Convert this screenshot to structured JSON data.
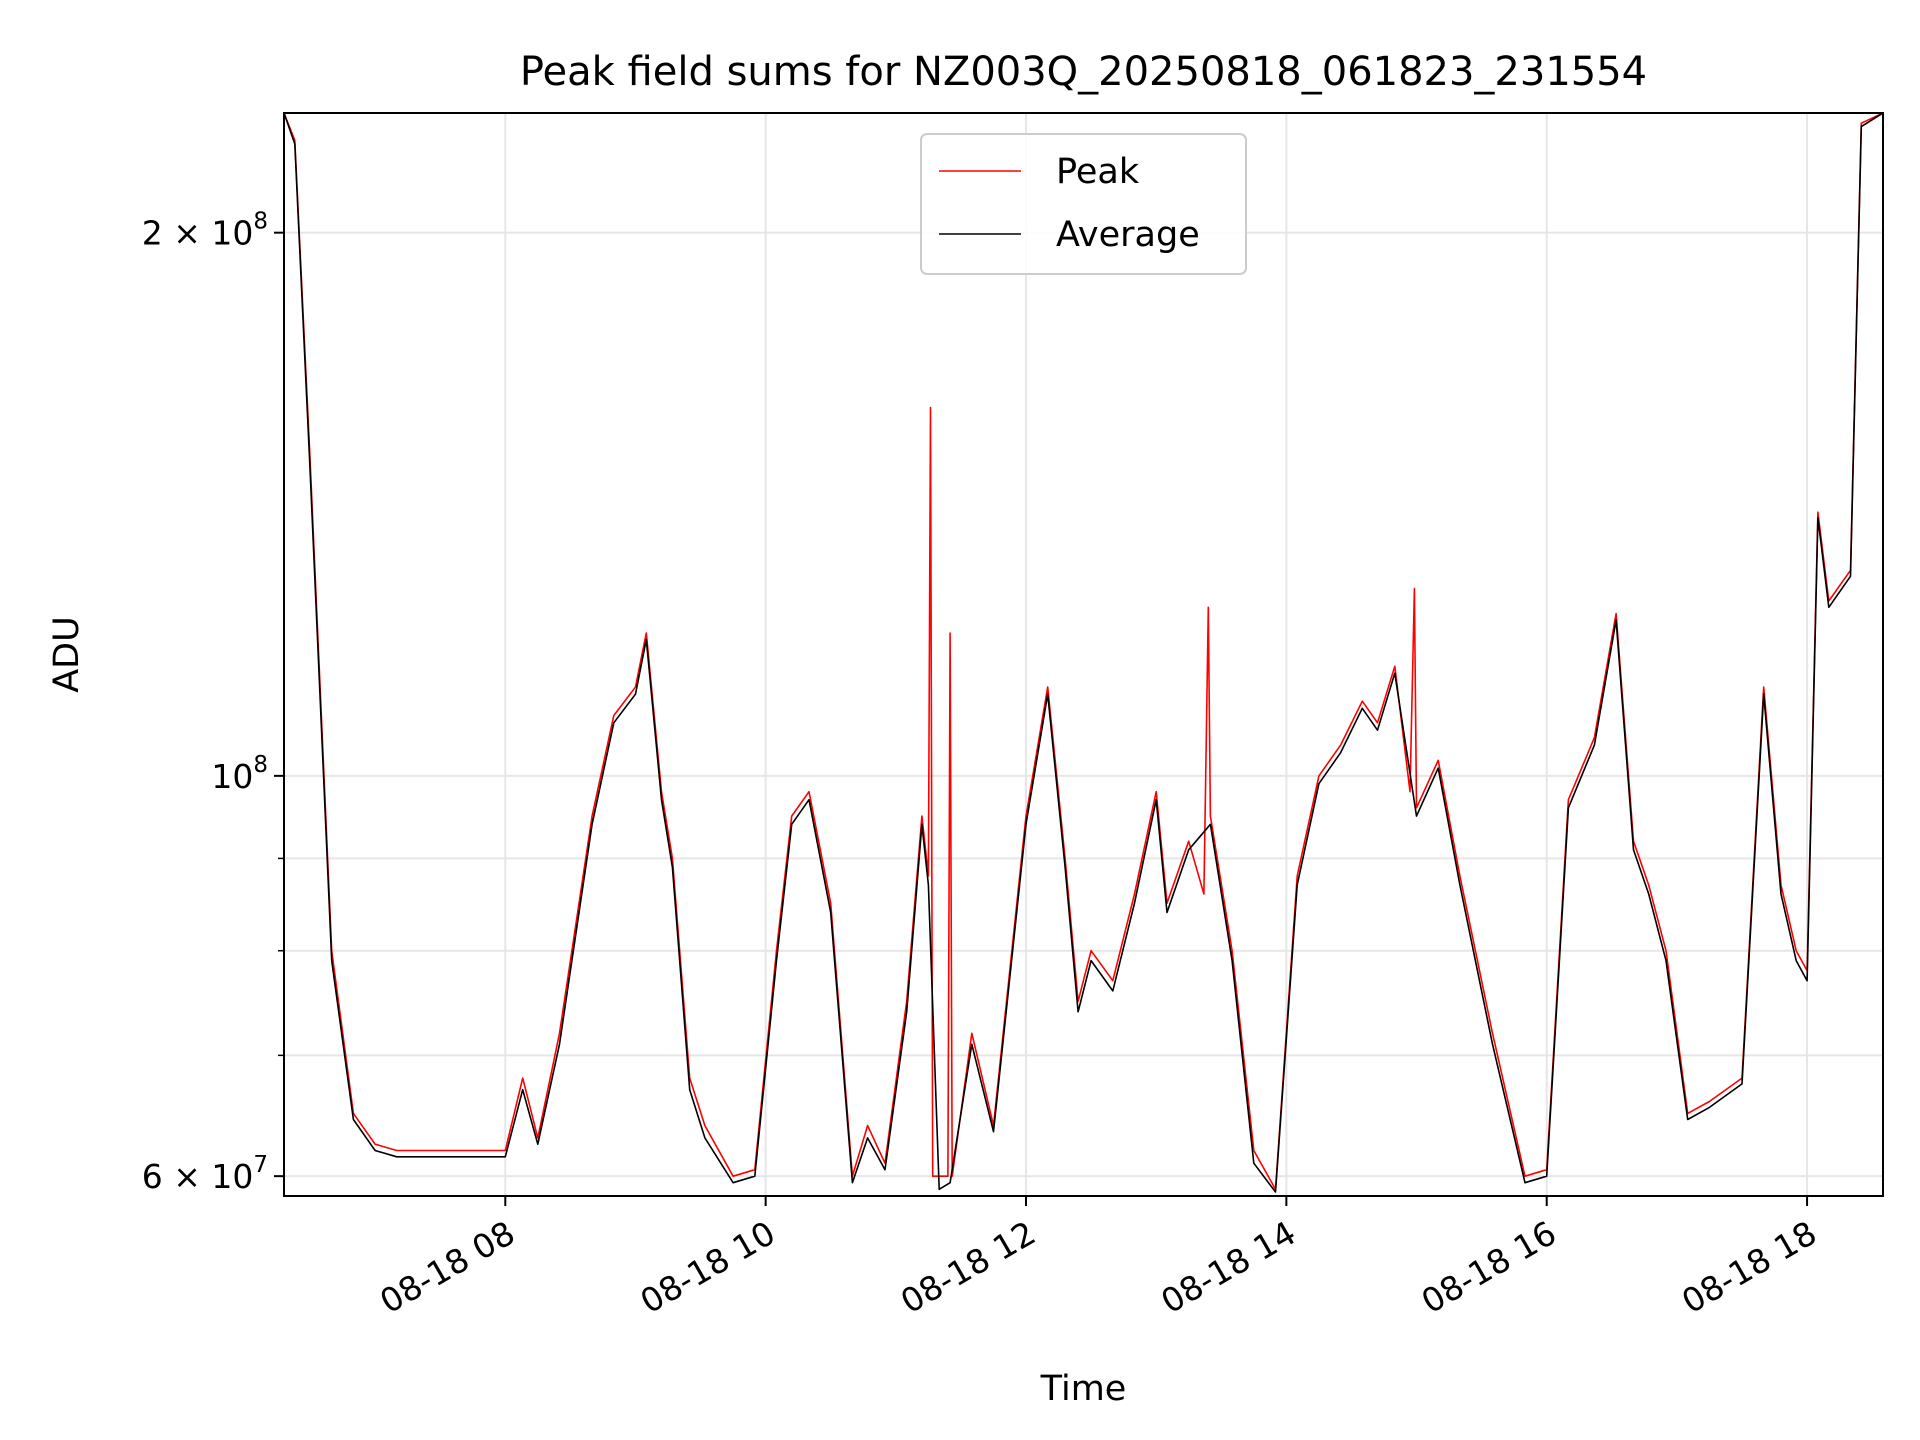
{
  "chart_data": {
    "type": "line",
    "title": "Peak field sums for NZ003Q_20250818_061823_231554",
    "xlabel": "Time",
    "ylabel": "ADU",
    "y_scale": "log",
    "ylim": [
      58500000,
      233000000
    ],
    "xlim": [
      "2025-08-18T06:18",
      "2025-08-18T18:35"
    ],
    "x_ticks": [
      {
        "value": "2025-08-18T08:00",
        "label": "08-18 08"
      },
      {
        "value": "2025-08-18T10:00",
        "label": "08-18 10"
      },
      {
        "value": "2025-08-18T12:00",
        "label": "08-18 12"
      },
      {
        "value": "2025-08-18T14:00",
        "label": "08-18 14"
      },
      {
        "value": "2025-08-18T16:00",
        "label": "08-18 16"
      },
      {
        "value": "2025-08-18T18:00",
        "label": "08-18 18"
      }
    ],
    "y_ticks": [
      {
        "value": 60000000,
        "base": "6 × 10",
        "exp": "7"
      },
      {
        "value": 100000000,
        "base": "10",
        "exp": "8"
      },
      {
        "value": 200000000,
        "base": "2 × 10",
        "exp": "8"
      }
    ],
    "y_minor_ticks": [
      70000000,
      80000000,
      90000000
    ],
    "grid": true,
    "legend": "upper-center",
    "series": [
      {
        "name": "Peak",
        "color": "#ff0000",
        "x": [
          "2025-08-18T06:18",
          "2025-08-18T06:23",
          "2025-08-18T06:30",
          "2025-08-18T06:40",
          "2025-08-18T06:50",
          "2025-08-18T07:00",
          "2025-08-18T07:10",
          "2025-08-18T07:20",
          "2025-08-18T07:40",
          "2025-08-18T08:00",
          "2025-08-18T08:08",
          "2025-08-18T08:15",
          "2025-08-18T08:25",
          "2025-08-18T08:40",
          "2025-08-18T08:50",
          "2025-08-18T09:00",
          "2025-08-18T09:05",
          "2025-08-18T09:12",
          "2025-08-18T09:17",
          "2025-08-18T09:25",
          "2025-08-18T09:32",
          "2025-08-18T09:45",
          "2025-08-18T09:55",
          "2025-08-18T10:05",
          "2025-08-18T10:12",
          "2025-08-18T10:20",
          "2025-08-18T10:30",
          "2025-08-18T10:40",
          "2025-08-18T10:47",
          "2025-08-18T10:55",
          "2025-08-18T11:05",
          "2025-08-18T11:12",
          "2025-08-18T11:15",
          "2025-08-18T11:16",
          "2025-08-18T11:17",
          "2025-08-18T11:24",
          "2025-08-18T11:25",
          "2025-08-18T11:26",
          "2025-08-18T11:35",
          "2025-08-18T11:45",
          "2025-08-18T12:00",
          "2025-08-18T12:10",
          "2025-08-18T12:18",
          "2025-08-18T12:24",
          "2025-08-18T12:30",
          "2025-08-18T12:40",
          "2025-08-18T12:50",
          "2025-08-18T13:00",
          "2025-08-18T13:05",
          "2025-08-18T13:15",
          "2025-08-18T13:22",
          "2025-08-18T13:24",
          "2025-08-18T13:25",
          "2025-08-18T13:35",
          "2025-08-18T13:45",
          "2025-08-18T13:55",
          "2025-08-18T14:05",
          "2025-08-18T14:15",
          "2025-08-18T14:25",
          "2025-08-18T14:35",
          "2025-08-18T14:42",
          "2025-08-18T14:50",
          "2025-08-18T14:57",
          "2025-08-18T14:59",
          "2025-08-18T15:00",
          "2025-08-18T15:10",
          "2025-08-18T15:20",
          "2025-08-18T15:35",
          "2025-08-18T15:50",
          "2025-08-18T16:00",
          "2025-08-18T16:10",
          "2025-08-18T16:22",
          "2025-08-18T16:32",
          "2025-08-18T16:40",
          "2025-08-18T16:47",
          "2025-08-18T16:55",
          "2025-08-18T17:05",
          "2025-08-18T17:15",
          "2025-08-18T17:30",
          "2025-08-18T17:40",
          "2025-08-18T17:48",
          "2025-08-18T17:55",
          "2025-08-18T18:00",
          "2025-08-18T18:05",
          "2025-08-18T18:10",
          "2025-08-18T18:20",
          "2025-08-18T18:25",
          "2025-08-18T18:35"
        ],
        "y": [
          233000000,
          225000000,
          150000000,
          80000000,
          65000000,
          62500000,
          62000000,
          62000000,
          62000000,
          62000000,
          68000000,
          63000000,
          72000000,
          95000000,
          108000000,
          112000000,
          120000000,
          98000000,
          90000000,
          68000000,
          64000000,
          60000000,
          60500000,
          80000000,
          95000000,
          98000000,
          85000000,
          60000000,
          64000000,
          61000000,
          75000000,
          95000000,
          88000000,
          160000000,
          60000000,
          60000000,
          120000000,
          60000000,
          72000000,
          64000000,
          95000000,
          112000000,
          90000000,
          75000000,
          80000000,
          77000000,
          86000000,
          98000000,
          85000000,
          92000000,
          86000000,
          124000000,
          95000000,
          80000000,
          62000000,
          59000000,
          88000000,
          100000000,
          104000000,
          110000000,
          107000000,
          115000000,
          98000000,
          127000000,
          96000000,
          102000000,
          88000000,
          72000000,
          60000000,
          60500000,
          97000000,
          105000000,
          123000000,
          92000000,
          87000000,
          80000000,
          65000000,
          66000000,
          68000000,
          112000000,
          87000000,
          80000000,
          78000000,
          140000000,
          125000000,
          130000000,
          230000000,
          233000000
        ]
      },
      {
        "name": "Average",
        "color": "#000000",
        "x": [
          "2025-08-18T06:18",
          "2025-08-18T06:23",
          "2025-08-18T06:30",
          "2025-08-18T06:40",
          "2025-08-18T06:50",
          "2025-08-18T07:00",
          "2025-08-18T07:10",
          "2025-08-18T07:20",
          "2025-08-18T07:40",
          "2025-08-18T08:00",
          "2025-08-18T08:08",
          "2025-08-18T08:15",
          "2025-08-18T08:25",
          "2025-08-18T08:40",
          "2025-08-18T08:50",
          "2025-08-18T09:00",
          "2025-08-18T09:05",
          "2025-08-18T09:12",
          "2025-08-18T09:17",
          "2025-08-18T09:25",
          "2025-08-18T09:32",
          "2025-08-18T09:45",
          "2025-08-18T09:55",
          "2025-08-18T10:05",
          "2025-08-18T10:12",
          "2025-08-18T10:20",
          "2025-08-18T10:30",
          "2025-08-18T10:40",
          "2025-08-18T10:47",
          "2025-08-18T10:55",
          "2025-08-18T11:05",
          "2025-08-18T11:12",
          "2025-08-18T11:15",
          "2025-08-18T11:20",
          "2025-08-18T11:25",
          "2025-08-18T11:35",
          "2025-08-18T11:45",
          "2025-08-18T12:00",
          "2025-08-18T12:10",
          "2025-08-18T12:18",
          "2025-08-18T12:24",
          "2025-08-18T12:30",
          "2025-08-18T12:40",
          "2025-08-18T12:50",
          "2025-08-18T13:00",
          "2025-08-18T13:05",
          "2025-08-18T13:15",
          "2025-08-18T13:25",
          "2025-08-18T13:35",
          "2025-08-18T13:45",
          "2025-08-18T13:55",
          "2025-08-18T14:05",
          "2025-08-18T14:15",
          "2025-08-18T14:25",
          "2025-08-18T14:35",
          "2025-08-18T14:42",
          "2025-08-18T14:50",
          "2025-08-18T15:00",
          "2025-08-18T15:10",
          "2025-08-18T15:20",
          "2025-08-18T15:35",
          "2025-08-18T15:50",
          "2025-08-18T16:00",
          "2025-08-18T16:10",
          "2025-08-18T16:22",
          "2025-08-18T16:32",
          "2025-08-18T16:40",
          "2025-08-18T16:47",
          "2025-08-18T16:55",
          "2025-08-18T17:05",
          "2025-08-18T17:15",
          "2025-08-18T17:30",
          "2025-08-18T17:40",
          "2025-08-18T17:48",
          "2025-08-18T17:55",
          "2025-08-18T18:00",
          "2025-08-18T18:05",
          "2025-08-18T18:10",
          "2025-08-18T18:20",
          "2025-08-18T18:25",
          "2025-08-18T18:35"
        ],
        "y": [
          233000000,
          224000000,
          148000000,
          79000000,
          64500000,
          62000000,
          61500000,
          61500000,
          61500000,
          61500000,
          67000000,
          62500000,
          71000000,
          94000000,
          107000000,
          111000000,
          119000000,
          97000000,
          89000000,
          67000000,
          63000000,
          59500000,
          60000000,
          79000000,
          94000000,
          97000000,
          84000000,
          59500000,
          63000000,
          60500000,
          74000000,
          94000000,
          87000000,
          59000000,
          59500000,
          71000000,
          63500000,
          94000000,
          111000000,
          89000000,
          74000000,
          79000000,
          76000000,
          85000000,
          97000000,
          84000000,
          91000000,
          94000000,
          79000000,
          61000000,
          58800000,
          87000000,
          99000000,
          103000000,
          109000000,
          106000000,
          114000000,
          95000000,
          101000000,
          87000000,
          71000000,
          59500000,
          60000000,
          96000000,
          104000000,
          122000000,
          91000000,
          86000000,
          79000000,
          64500000,
          65500000,
          67500000,
          111000000,
          86000000,
          79000000,
          77000000,
          139000000,
          124000000,
          129000000,
          229000000,
          233000000
        ]
      }
    ]
  }
}
